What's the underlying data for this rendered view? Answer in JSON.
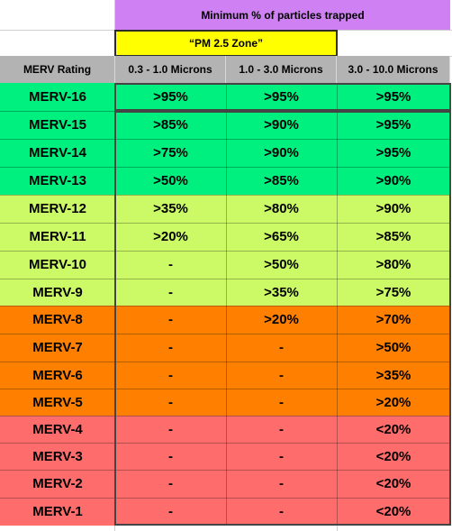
{
  "header": {
    "title": "Minimum % of particles trapped",
    "pm_zone": "“PM 2.5 Zone”"
  },
  "columns": {
    "rating": "MERV Rating",
    "c1": "0.3 - 1.0 Microns",
    "c2": "1.0 - 3.0 Microns",
    "c3": "3.0 - 10.0 Microns"
  },
  "rows": [
    {
      "label": "MERV-16",
      "c1": ">95%",
      "c2": ">95%",
      "c3": ">95%"
    },
    {
      "label": "MERV-15",
      "c1": ">85%",
      "c2": ">90%",
      "c3": ">95%"
    },
    {
      "label": "MERV-14",
      "c1": ">75%",
      "c2": ">90%",
      "c3": ">95%"
    },
    {
      "label": "MERV-13",
      "c1": ">50%",
      "c2": ">85%",
      "c3": ">90%"
    },
    {
      "label": "MERV-12",
      "c1": ">35%",
      "c2": ">80%",
      "c3": ">90%"
    },
    {
      "label": "MERV-11",
      "c1": ">20%",
      "c2": ">65%",
      "c3": ">85%"
    },
    {
      "label": "MERV-10",
      "c1": "-",
      "c2": ">50%",
      "c3": ">80%"
    },
    {
      "label": "MERV-9",
      "c1": "-",
      "c2": ">35%",
      "c3": ">75%"
    },
    {
      "label": "MERV-8",
      "c1": "-",
      "c2": ">20%",
      "c3": ">70%"
    },
    {
      "label": "MERV-7",
      "c1": "-",
      "c2": "-",
      "c3": ">50%"
    },
    {
      "label": "MERV-6",
      "c1": "-",
      "c2": "-",
      "c3": ">35%"
    },
    {
      "label": "MERV-5",
      "c1": "-",
      "c2": "-",
      "c3": ">20%"
    },
    {
      "label": "MERV-4",
      "c1": "-",
      "c2": "-",
      "c3": "<20%"
    },
    {
      "label": "MERV-3",
      "c1": "-",
      "c2": "-",
      "c3": "<20%"
    },
    {
      "label": "MERV-2",
      "c1": "-",
      "c2": "-",
      "c3": "<20%"
    },
    {
      "label": "MERV-1",
      "c1": "-",
      "c2": "-",
      "c3": "<20%"
    }
  ],
  "colors": {
    "header_purple": "#cf80f2",
    "pm_yellow": "#ffff00",
    "header_gray": "#b3b3b3",
    "green": "#00f07f",
    "lime": "#ccfa66",
    "orange": "#ff8000",
    "red": "#ff6c6c"
  }
}
